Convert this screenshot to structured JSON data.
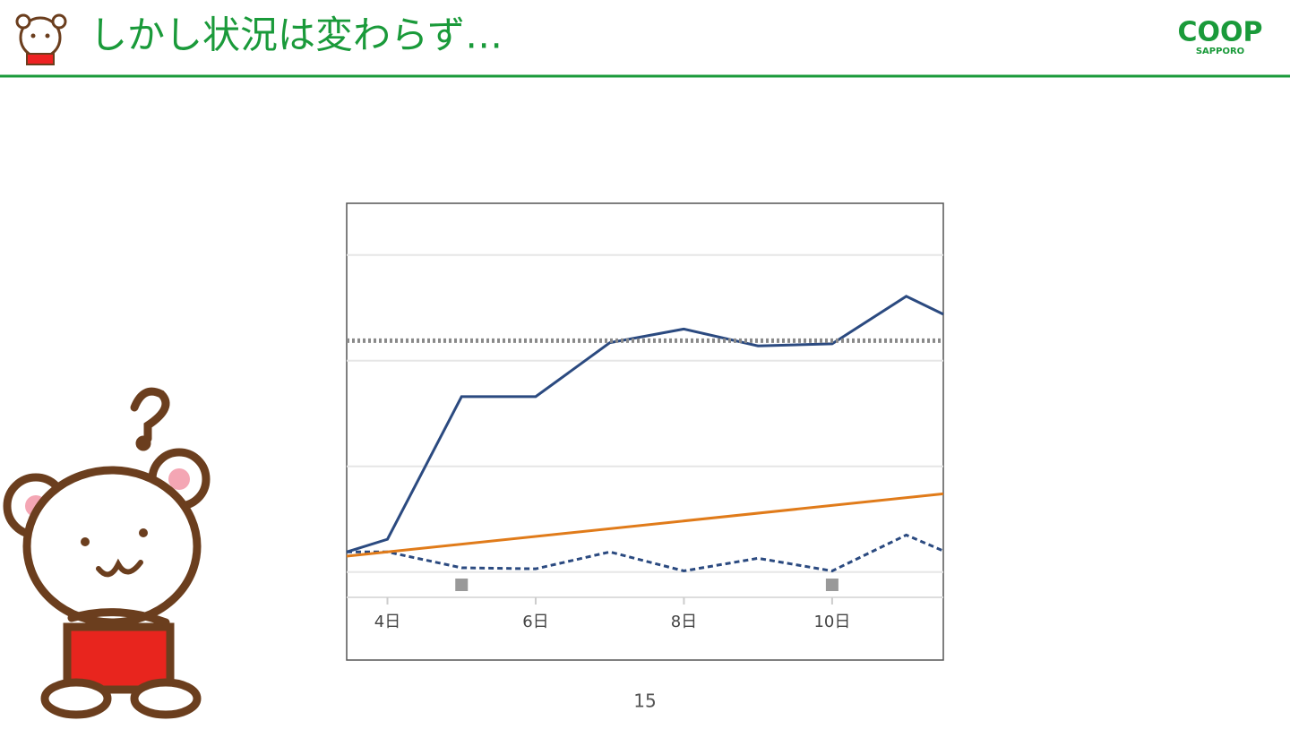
{
  "header": {
    "title": "しかし状況は変わらず…",
    "logo": "COOP",
    "logo_sub": "SAPPORO"
  },
  "page_number": "15",
  "chart_data": {
    "type": "line",
    "xlim": [
      3.45,
      11.5
    ],
    "xticks": [
      {
        "value": 4,
        "label": "4日"
      },
      {
        "value": 6,
        "label": "6日"
      },
      {
        "value": 8,
        "label": "8日"
      },
      {
        "value": 10,
        "label": "10日"
      }
    ],
    "ylim": [
      0.76,
      4.49
    ],
    "grid_lines": [
      1,
      2,
      3,
      4
    ],
    "markers_x": [
      5,
      10
    ],
    "series": [
      {
        "color": "#2b4a80",
        "dash": "solid",
        "x": [
          3.45,
          4,
          5,
          6,
          7,
          8,
          9,
          10,
          11,
          11.5
        ],
        "values": [
          1.19,
          1.31,
          2.66,
          2.66,
          3.17,
          3.3,
          3.14,
          3.16,
          3.61,
          3.44
        ]
      },
      {
        "color": "#2b4a80",
        "dash": "dashed",
        "x": [
          3.45,
          4,
          5,
          6,
          7,
          8,
          9,
          10,
          11,
          11.5
        ],
        "values": [
          1.19,
          1.19,
          1.04,
          1.03,
          1.19,
          1.01,
          1.13,
          1.01,
          1.35,
          1.2
        ]
      },
      {
        "color": "#e07b1a",
        "dash": "solid",
        "x": [
          3.45,
          11.5
        ],
        "values": [
          1.15,
          1.74
        ]
      },
      {
        "color": "#8a8a8a",
        "dash": "dotted",
        "x": [
          3.45,
          11.5
        ],
        "values": [
          3.19,
          3.19
        ]
      }
    ]
  }
}
